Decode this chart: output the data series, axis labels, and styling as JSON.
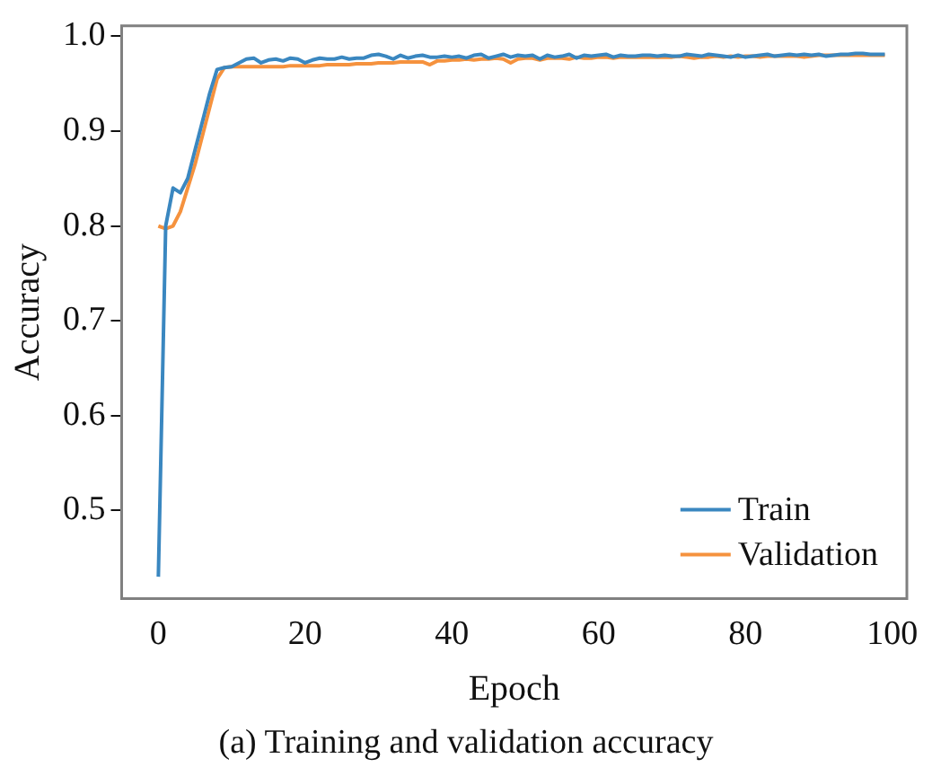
{
  "chart_data": {
    "type": "line",
    "xlabel": "Epoch",
    "ylabel": "Accuracy",
    "annotations": [
      "(a) Training and validation accuracy"
    ],
    "x": [
      0,
      1,
      2,
      3,
      4,
      5,
      6,
      7,
      8,
      9,
      10,
      11,
      12,
      13,
      14,
      15,
      16,
      17,
      18,
      19,
      20,
      21,
      22,
      23,
      24,
      25,
      26,
      27,
      28,
      29,
      30,
      31,
      32,
      33,
      34,
      35,
      36,
      37,
      38,
      39,
      40,
      41,
      42,
      43,
      44,
      45,
      46,
      47,
      48,
      49,
      50,
      51,
      52,
      53,
      54,
      55,
      56,
      57,
      58,
      59,
      60,
      61,
      62,
      63,
      64,
      65,
      66,
      67,
      68,
      69,
      70,
      71,
      72,
      73,
      74,
      75,
      76,
      77,
      78,
      79,
      80,
      81,
      82,
      83,
      84,
      85,
      86,
      87,
      88,
      89,
      90,
      91,
      92,
      93,
      94,
      95,
      96,
      97,
      98,
      99
    ],
    "xlim": [
      -5,
      102
    ],
    "xticks": [
      0,
      20,
      40,
      60,
      80,
      100
    ],
    "ylim": [
      0.407,
      1.011
    ],
    "yticks": [
      {
        "value": 0.5,
        "label": "0.5"
      },
      {
        "value": 0.6,
        "label": "0.6"
      },
      {
        "value": 0.7,
        "label": "0.7"
      },
      {
        "value": 0.8,
        "label": "0.8"
      },
      {
        "value": 0.9,
        "label": "0.9"
      },
      {
        "value": 1.0,
        "label": "1.0"
      }
    ],
    "grid": false,
    "legend": "bottom right",
    "marker": "none",
    "line_style": "solid",
    "series": [
      {
        "name": "Train",
        "color": "#3a87c0",
        "values": [
          0.43,
          0.8,
          0.84,
          0.835,
          0.85,
          0.88,
          0.91,
          0.94,
          0.965,
          0.967,
          0.968,
          0.972,
          0.976,
          0.977,
          0.972,
          0.975,
          0.976,
          0.974,
          0.977,
          0.976,
          0.972,
          0.975,
          0.977,
          0.976,
          0.976,
          0.978,
          0.976,
          0.977,
          0.977,
          0.98,
          0.981,
          0.979,
          0.976,
          0.98,
          0.977,
          0.979,
          0.98,
          0.978,
          0.978,
          0.979,
          0.978,
          0.979,
          0.977,
          0.98,
          0.981,
          0.977,
          0.979,
          0.981,
          0.978,
          0.98,
          0.979,
          0.98,
          0.976,
          0.98,
          0.978,
          0.979,
          0.981,
          0.977,
          0.98,
          0.979,
          0.98,
          0.981,
          0.978,
          0.98,
          0.979,
          0.979,
          0.98,
          0.98,
          0.979,
          0.98,
          0.979,
          0.979,
          0.981,
          0.98,
          0.979,
          0.981,
          0.98,
          0.979,
          0.978,
          0.98,
          0.978,
          0.979,
          0.98,
          0.981,
          0.979,
          0.98,
          0.981,
          0.98,
          0.981,
          0.98,
          0.981,
          0.979,
          0.98,
          0.981,
          0.981,
          0.982,
          0.982,
          0.981,
          0.981,
          0.981
        ]
      },
      {
        "name": "Validation",
        "color": "#f5923e",
        "values": [
          0.8,
          0.797,
          0.8,
          0.815,
          0.84,
          0.865,
          0.895,
          0.925,
          0.955,
          0.967,
          0.968,
          0.968,
          0.968,
          0.968,
          0.968,
          0.968,
          0.968,
          0.968,
          0.969,
          0.969,
          0.969,
          0.969,
          0.969,
          0.97,
          0.97,
          0.97,
          0.97,
          0.971,
          0.971,
          0.971,
          0.972,
          0.972,
          0.972,
          0.973,
          0.973,
          0.973,
          0.973,
          0.97,
          0.974,
          0.974,
          0.975,
          0.975,
          0.976,
          0.975,
          0.976,
          0.976,
          0.977,
          0.976,
          0.972,
          0.976,
          0.977,
          0.977,
          0.975,
          0.977,
          0.977,
          0.977,
          0.976,
          0.978,
          0.977,
          0.977,
          0.978,
          0.978,
          0.977,
          0.978,
          0.978,
          0.978,
          0.978,
          0.978,
          0.978,
          0.978,
          0.978,
          0.979,
          0.978,
          0.977,
          0.978,
          0.978,
          0.979,
          0.978,
          0.979,
          0.978,
          0.979,
          0.979,
          0.978,
          0.979,
          0.979,
          0.979,
          0.979,
          0.979,
          0.978,
          0.979,
          0.98,
          0.98,
          0.98,
          0.98,
          0.98,
          0.98,
          0.98,
          0.98,
          0.98,
          0.98
        ]
      }
    ]
  }
}
